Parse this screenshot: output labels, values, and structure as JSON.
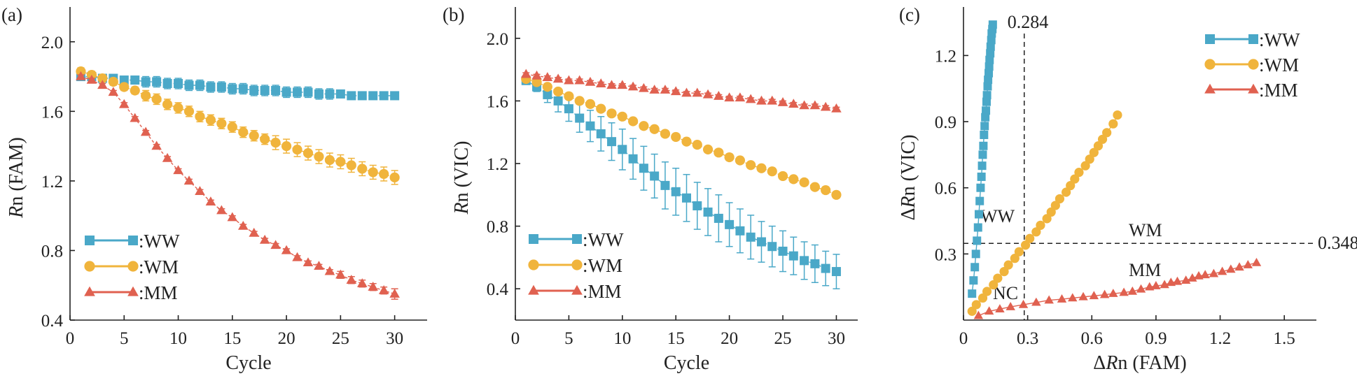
{
  "colors": {
    "WW": "#4aa8c8",
    "WM": "#f0b43c",
    "MM": "#e06150",
    "axis": "#222222"
  },
  "chart_data": [
    {
      "type": "scatter",
      "panel_label": "(a)",
      "xlabel": "Cycle",
      "ylabel_italic": "R",
      "ylabel_rest": "n (FAM)",
      "xlim": [
        0,
        33
      ],
      "ylim": [
        0.4,
        2.2
      ],
      "xticks": [
        0,
        5,
        10,
        15,
        20,
        25,
        30
      ],
      "yticks": [
        0.4,
        0.8,
        1.2,
        1.6,
        2.0
      ],
      "ytick_labels": [
        "0.4",
        "0.8",
        "1.2",
        "1.6",
        "2.0"
      ],
      "legend_position": "bottom-left",
      "x": [
        1,
        2,
        3,
        4,
        5,
        6,
        7,
        8,
        9,
        10,
        11,
        12,
        13,
        14,
        15,
        16,
        17,
        18,
        19,
        20,
        21,
        22,
        23,
        24,
        25,
        26,
        27,
        28,
        29,
        30
      ],
      "series": [
        {
          "name": ":WW",
          "key": "WW",
          "marker": "square",
          "values": [
            1.8,
            1.8,
            1.79,
            1.79,
            1.78,
            1.78,
            1.77,
            1.77,
            1.76,
            1.76,
            1.75,
            1.75,
            1.74,
            1.74,
            1.73,
            1.73,
            1.72,
            1.72,
            1.72,
            1.71,
            1.71,
            1.71,
            1.7,
            1.7,
            1.7,
            1.69,
            1.69,
            1.69,
            1.69,
            1.69
          ],
          "errors": [
            0.02,
            0.02,
            0.02,
            0.02,
            0.02,
            0.02,
            0.03,
            0.03,
            0.03,
            0.03,
            0.03,
            0.03,
            0.03,
            0.03,
            0.03,
            0.03,
            0.03,
            0.03,
            0.03,
            0.03,
            0.03,
            0.03,
            0.03,
            0.03,
            0.02,
            0.02,
            0.02,
            0.02,
            0.02,
            0.02
          ]
        },
        {
          "name": ":WM",
          "key": "WM",
          "marker": "circle",
          "values": [
            1.83,
            1.81,
            1.79,
            1.77,
            1.74,
            1.72,
            1.69,
            1.67,
            1.64,
            1.62,
            1.6,
            1.57,
            1.55,
            1.53,
            1.51,
            1.48,
            1.46,
            1.44,
            1.42,
            1.4,
            1.38,
            1.36,
            1.34,
            1.32,
            1.31,
            1.29,
            1.27,
            1.25,
            1.24,
            1.22
          ],
          "errors": [
            0.02,
            0.02,
            0.02,
            0.02,
            0.02,
            0.02,
            0.03,
            0.03,
            0.03,
            0.03,
            0.03,
            0.03,
            0.03,
            0.03,
            0.03,
            0.03,
            0.03,
            0.03,
            0.04,
            0.04,
            0.04,
            0.04,
            0.04,
            0.04,
            0.04,
            0.04,
            0.04,
            0.04,
            0.04,
            0.04
          ]
        },
        {
          "name": ":MM",
          "key": "MM",
          "marker": "triangle",
          "values": [
            1.8,
            1.78,
            1.75,
            1.71,
            1.64,
            1.56,
            1.48,
            1.4,
            1.33,
            1.26,
            1.2,
            1.14,
            1.08,
            1.03,
            0.99,
            0.94,
            0.9,
            0.86,
            0.83,
            0.8,
            0.76,
            0.73,
            0.71,
            0.68,
            0.66,
            0.63,
            0.61,
            0.59,
            0.57,
            0.55
          ],
          "errors": [
            0.01,
            0.01,
            0.01,
            0.01,
            0.01,
            0.01,
            0.01,
            0.01,
            0.01,
            0.01,
            0.01,
            0.01,
            0.01,
            0.01,
            0.01,
            0.01,
            0.01,
            0.01,
            0.01,
            0.01,
            0.01,
            0.01,
            0.01,
            0.01,
            0.02,
            0.02,
            0.02,
            0.02,
            0.02,
            0.03
          ]
        }
      ]
    },
    {
      "type": "scatter",
      "panel_label": "(b)",
      "xlabel": "Cycle",
      "ylabel_italic": "R",
      "ylabel_rest": "n (VIC)",
      "xlim": [
        0,
        32
      ],
      "ylim": [
        0.2,
        2.2
      ],
      "xticks": [
        0,
        5,
        10,
        15,
        20,
        25,
        30
      ],
      "yticks": [
        0.4,
        0.8,
        1.2,
        1.6,
        2.0
      ],
      "ytick_labels": [
        "0.4",
        "0.8",
        "1.2",
        "1.6",
        "2.0"
      ],
      "legend_position": "bottom-left",
      "x": [
        1,
        2,
        3,
        4,
        5,
        6,
        7,
        8,
        9,
        10,
        11,
        12,
        13,
        14,
        15,
        16,
        17,
        18,
        19,
        20,
        21,
        22,
        23,
        24,
        25,
        26,
        27,
        28,
        29,
        30
      ],
      "series": [
        {
          "name": ":WW",
          "key": "WW",
          "marker": "square",
          "values": [
            1.73,
            1.69,
            1.64,
            1.6,
            1.55,
            1.49,
            1.44,
            1.39,
            1.34,
            1.29,
            1.23,
            1.17,
            1.12,
            1.06,
            1.02,
            0.98,
            0.93,
            0.89,
            0.85,
            0.81,
            0.77,
            0.73,
            0.7,
            0.67,
            0.64,
            0.61,
            0.58,
            0.56,
            0.53,
            0.51
          ],
          "errors": [
            0.02,
            0.03,
            0.05,
            0.07,
            0.08,
            0.09,
            0.1,
            0.11,
            0.12,
            0.13,
            0.13,
            0.14,
            0.14,
            0.15,
            0.15,
            0.15,
            0.15,
            0.15,
            0.15,
            0.14,
            0.14,
            0.14,
            0.13,
            0.13,
            0.13,
            0.12,
            0.12,
            0.12,
            0.11,
            0.11
          ]
        },
        {
          "name": ":WM",
          "key": "WM",
          "marker": "circle",
          "values": [
            1.74,
            1.72,
            1.69,
            1.66,
            1.63,
            1.6,
            1.58,
            1.55,
            1.52,
            1.5,
            1.47,
            1.44,
            1.42,
            1.39,
            1.37,
            1.34,
            1.32,
            1.29,
            1.27,
            1.24,
            1.22,
            1.19,
            1.17,
            1.15,
            1.12,
            1.1,
            1.08,
            1.05,
            1.03,
            1.0
          ],
          "errors": [
            0.02,
            0.02,
            0.02,
            0.02,
            0.02,
            0.02,
            0.02,
            0.02,
            0.02,
            0.02,
            0.02,
            0.02,
            0.02,
            0.02,
            0.02,
            0.02,
            0.02,
            0.02,
            0.02,
            0.02,
            0.02,
            0.02,
            0.02,
            0.02,
            0.02,
            0.02,
            0.02,
            0.02,
            0.02,
            0.02
          ]
        },
        {
          "name": ":MM",
          "key": "MM",
          "marker": "triangle",
          "values": [
            1.77,
            1.76,
            1.75,
            1.74,
            1.73,
            1.73,
            1.72,
            1.71,
            1.7,
            1.7,
            1.69,
            1.68,
            1.67,
            1.67,
            1.66,
            1.65,
            1.65,
            1.64,
            1.63,
            1.62,
            1.62,
            1.61,
            1.6,
            1.6,
            1.59,
            1.58,
            1.57,
            1.57,
            1.56,
            1.55
          ],
          "errors": [
            0.01,
            0.01,
            0.01,
            0.01,
            0.01,
            0.01,
            0.01,
            0.01,
            0.01,
            0.01,
            0.01,
            0.01,
            0.01,
            0.01,
            0.01,
            0.01,
            0.01,
            0.01,
            0.01,
            0.01,
            0.01,
            0.01,
            0.01,
            0.01,
            0.01,
            0.01,
            0.01,
            0.01,
            0.01,
            0.01
          ]
        }
      ]
    },
    {
      "type": "scatter",
      "panel_label": "(c)",
      "xlabel_prefix": "Δ",
      "xlabel_italic": "R",
      "xlabel_rest": "n (FAM)",
      "ylabel_prefix": "Δ",
      "ylabel_italic": "R",
      "ylabel_rest": "n (VIC)",
      "xlim": [
        0,
        1.65
      ],
      "ylim": [
        0,
        1.42
      ],
      "xticks": [
        0,
        0.3,
        0.6,
        0.9,
        1.2,
        1.5
      ],
      "xtick_labels": [
        "0",
        "0.3",
        "0.6",
        "0.9",
        "1.2",
        "1.5"
      ],
      "yticks": [
        0.3,
        0.6,
        0.9,
        1.2
      ],
      "ytick_labels": [
        "0.3",
        "0.6",
        "0.9",
        "1.2"
      ],
      "legend_position": "top-right",
      "vline": {
        "x": 0.284,
        "label": "0.284"
      },
      "hline": {
        "y": 0.348,
        "label": "0.348"
      },
      "region_labels": [
        "WW",
        "WM",
        "MM",
        "NC"
      ],
      "series": [
        {
          "name": ":WW",
          "key": "WW",
          "marker": "square",
          "x": [
            0.04,
            0.047,
            0.053,
            0.058,
            0.063,
            0.068,
            0.072,
            0.076,
            0.08,
            0.084,
            0.087,
            0.09,
            0.093,
            0.096,
            0.099,
            0.102,
            0.105,
            0.108,
            0.11,
            0.113,
            0.115,
            0.118,
            0.12,
            0.122,
            0.125,
            0.127,
            0.13,
            0.132,
            0.135,
            0.137
          ],
          "y": [
            0.12,
            0.18,
            0.24,
            0.3,
            0.36,
            0.42,
            0.48,
            0.54,
            0.6,
            0.65,
            0.7,
            0.75,
            0.79,
            0.84,
            0.88,
            0.92,
            0.95,
            0.99,
            1.02,
            1.06,
            1.09,
            1.12,
            1.15,
            1.18,
            1.21,
            1.24,
            1.27,
            1.3,
            1.32,
            1.34
          ]
        },
        {
          "name": ":WM",
          "key": "WM",
          "marker": "circle",
          "x": [
            0.04,
            0.06,
            0.09,
            0.11,
            0.14,
            0.16,
            0.19,
            0.21,
            0.24,
            0.26,
            0.29,
            0.31,
            0.34,
            0.36,
            0.39,
            0.41,
            0.43,
            0.45,
            0.48,
            0.5,
            0.52,
            0.54,
            0.57,
            0.59,
            0.61,
            0.63,
            0.65,
            0.67,
            0.7,
            0.72
          ],
          "y": [
            0.04,
            0.07,
            0.1,
            0.13,
            0.16,
            0.19,
            0.22,
            0.25,
            0.28,
            0.31,
            0.34,
            0.37,
            0.4,
            0.43,
            0.46,
            0.49,
            0.52,
            0.55,
            0.58,
            0.61,
            0.64,
            0.67,
            0.7,
            0.73,
            0.76,
            0.79,
            0.82,
            0.85,
            0.89,
            0.93
          ]
        },
        {
          "name": ":MM",
          "key": "MM",
          "marker": "triangle",
          "x": [
            0.07,
            0.12,
            0.17,
            0.22,
            0.28,
            0.34,
            0.4,
            0.46,
            0.51,
            0.56,
            0.61,
            0.66,
            0.7,
            0.75,
            0.79,
            0.83,
            0.87,
            0.9,
            0.94,
            0.97,
            1.0,
            1.04,
            1.07,
            1.1,
            1.13,
            1.17,
            1.21,
            1.25,
            1.29,
            1.33,
            1.37
          ],
          "y": [
            0.02,
            0.04,
            0.05,
            0.06,
            0.07,
            0.08,
            0.09,
            0.095,
            0.1,
            0.105,
            0.11,
            0.115,
            0.12,
            0.125,
            0.13,
            0.14,
            0.15,
            0.155,
            0.16,
            0.17,
            0.175,
            0.18,
            0.19,
            0.2,
            0.205,
            0.21,
            0.22,
            0.23,
            0.24,
            0.25,
            0.26
          ]
        }
      ]
    }
  ]
}
